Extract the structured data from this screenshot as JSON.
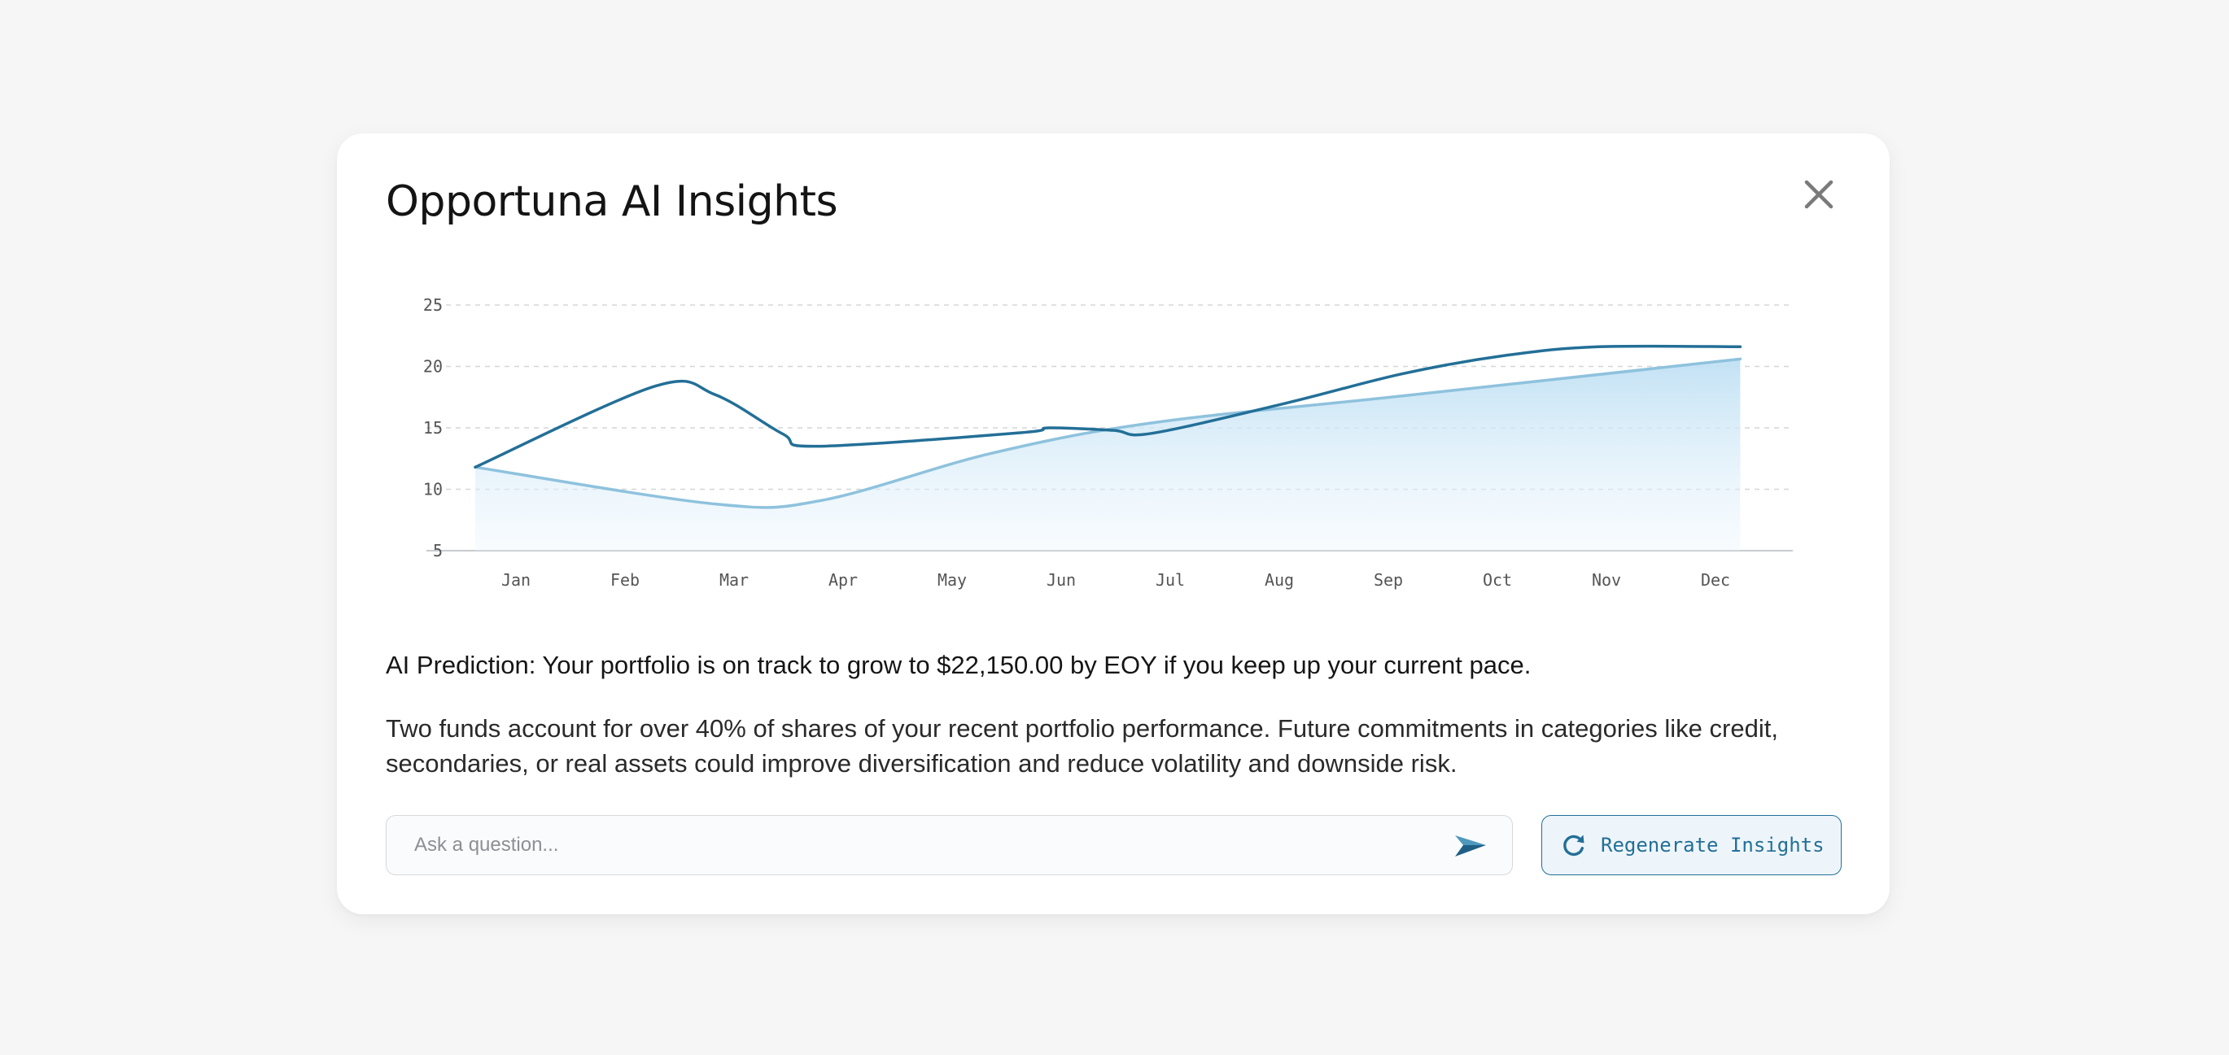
{
  "modal": {
    "title": "Opportuna AI Insights",
    "close_icon": "close-icon"
  },
  "chart_data": {
    "type": "line",
    "categories": [
      "Jan",
      "Feb",
      "Mar",
      "Apr",
      "May",
      "Jun",
      "Jul",
      "Aug",
      "Sep",
      "Oct",
      "Nov",
      "Dec"
    ],
    "y_ticks": [
      25,
      20,
      15,
      10,
      5
    ],
    "ylim": [
      5,
      25
    ],
    "grid": "horizontal-dashed",
    "title": "",
    "xlabel": "",
    "ylabel": "",
    "series": [
      {
        "style": "line",
        "color": "#236f97",
        "points": [
          {
            "x": 0,
            "y": 11.8
          },
          {
            "x": 1.65,
            "y": 18.4
          },
          {
            "x": 2.2,
            "y": 17.7
          },
          {
            "x": 2.82,
            "y": 14.5
          },
          {
            "x": 3.13,
            "y": 13.5
          },
          {
            "x": 5.0,
            "y": 14.6
          },
          {
            "x": 5.26,
            "y": 15.0
          },
          {
            "x": 5.85,
            "y": 14.8
          },
          {
            "x": 6.2,
            "y": 14.55
          },
          {
            "x": 7.43,
            "y": 17.0
          },
          {
            "x": 8.5,
            "y": 19.4
          },
          {
            "x": 9.45,
            "y": 20.9
          },
          {
            "x": 10.3,
            "y": 21.6
          },
          {
            "x": 11.6,
            "y": 21.6
          }
        ]
      },
      {
        "style": "area",
        "color": "#8ec2dd",
        "fill": "#cfe6f5",
        "points": [
          {
            "x": 0,
            "y": 11.8
          },
          {
            "x": 2.2,
            "y": 8.8
          },
          {
            "x": 3.18,
            "y": 9.1
          },
          {
            "x": 4.72,
            "y": 12.9
          },
          {
            "x": 6.2,
            "y": 15.4
          },
          {
            "x": 8.5,
            "y": 17.6
          },
          {
            "x": 11.6,
            "y": 20.6
          }
        ]
      }
    ]
  },
  "insights": {
    "prediction": "AI Prediction: Your portfolio is on track to grow to $22,150.00 by EOY if you keep up your current pace.",
    "description": "Two funds account for over 40% of shares of your recent portfolio performance. Future commitments in categories like credit, secondaries, or real assets could improve diversification and reduce volatility and downside risk."
  },
  "ask": {
    "placeholder": "Ask a question...",
    "value": "",
    "send_icon": "send-icon"
  },
  "regenerate": {
    "label": "Regenerate Insights",
    "icon": "refresh-icon"
  },
  "colors": {
    "accent": "#236f97",
    "area_line": "#8ec2dd",
    "area_fill": "#cfe6f5",
    "background": "#f6f6f6",
    "card": "#ffffff"
  }
}
